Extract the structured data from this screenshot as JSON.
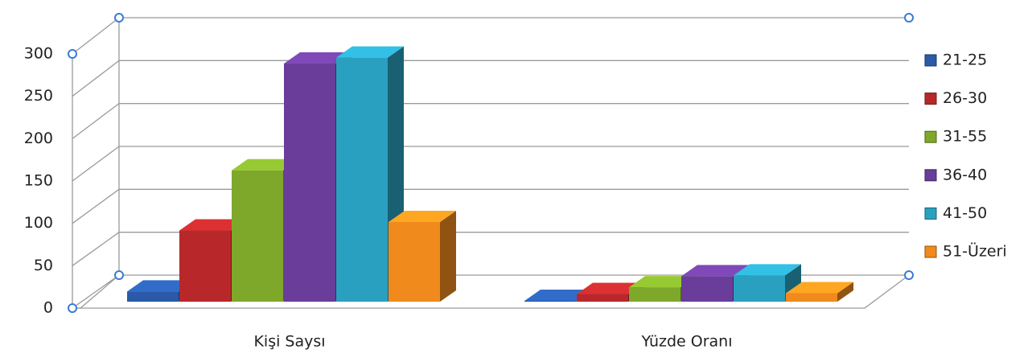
{
  "chart_data": {
    "type": "bar",
    "categories": [
      "Kişi Saysı",
      "Yüzde Oranı"
    ],
    "series": [
      {
        "name": "21-25",
        "color": "#2a5aa8",
        "values": [
          12,
          1
        ]
      },
      {
        "name": "26-30",
        "color": "#b8282a",
        "values": [
          84,
          9
        ]
      },
      {
        "name": "31-55",
        "color": "#7ea82a",
        "values": [
          155,
          17
        ]
      },
      {
        "name": "36-40",
        "color": "#6a3d9a",
        "values": [
          281,
          30
        ]
      },
      {
        "name": "41-50",
        "color": "#2aa0c0",
        "values": [
          288,
          31
        ]
      },
      {
        "name": "51-Üzeri",
        "color": "#f08a1c",
        "values": [
          94,
          10
        ]
      }
    ],
    "ylim": [
      0,
      300
    ],
    "yticks": [
      0,
      50,
      100,
      150,
      200,
      250,
      300
    ],
    "grid": true,
    "legend": "right"
  }
}
